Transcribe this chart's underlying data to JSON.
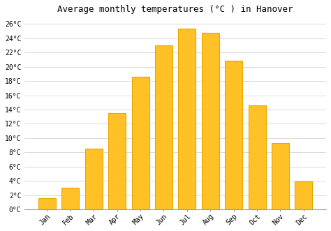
{
  "title": "Average monthly temperatures (°C ) in Hanover",
  "months": [
    "Jan",
    "Feb",
    "Mar",
    "Apr",
    "May",
    "Jun",
    "Jul",
    "Aug",
    "Sep",
    "Oct",
    "Nov",
    "Dec"
  ],
  "temperatures": [
    1.6,
    3.1,
    8.5,
    13.5,
    18.6,
    23.0,
    25.3,
    24.7,
    20.8,
    14.6,
    9.3,
    3.9
  ],
  "bar_color": "#FFC125",
  "bar_edge_color": "#E8A800",
  "background_color": "#ffffff",
  "plot_bg_color": "#ffffff",
  "grid_color": "#cccccc",
  "ylim": [
    0,
    27
  ],
  "title_fontsize": 9,
  "tick_fontsize": 7,
  "font_family": "monospace"
}
